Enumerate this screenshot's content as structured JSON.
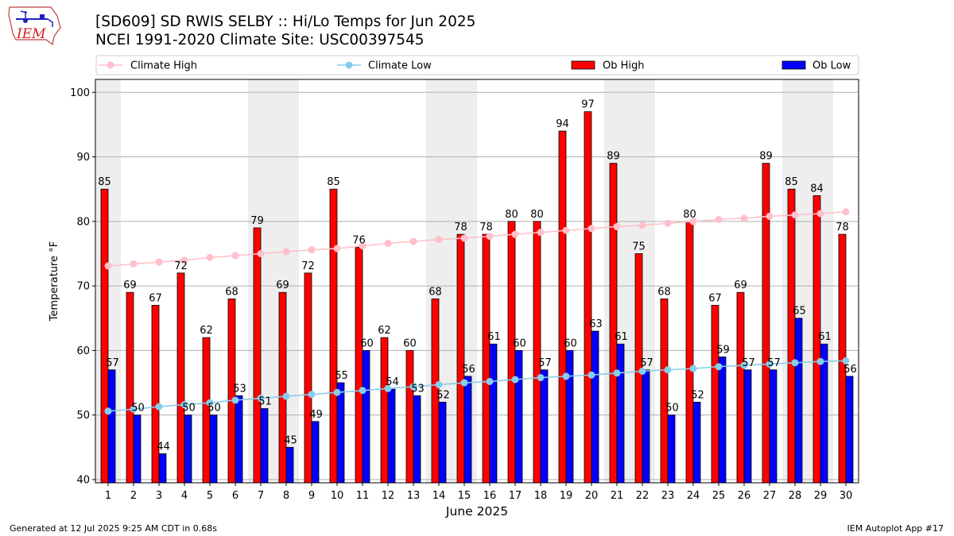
{
  "header": {
    "title_line1": "[SD609] SD RWIS SELBY :: Hi/Lo Temps for Jun 2025",
    "title_line2": "NCEI 1991-2020 Climate Site: USC00397545",
    "logo_text": "IEM"
  },
  "footer": {
    "generated": "Generated at 12 Jul 2025 9:25 AM CDT in 0.68s",
    "app": "IEM Autoplot App #17"
  },
  "colors": {
    "climate_high": "#ffc0cb",
    "climate_low": "#87ceeb",
    "ob_high": "#ff0000",
    "ob_low": "#0000ff",
    "weekend_shade": "#eeeeee",
    "grid": "#b0b0b0"
  },
  "chart_data": {
    "type": "bar",
    "xlabel": "June 2025",
    "ylabel": "Temperature °F",
    "ylim": [
      39.5,
      102
    ],
    "yticks": [
      40,
      50,
      60,
      70,
      80,
      90,
      100
    ],
    "grid": "horizontal",
    "legend": "top, above plot",
    "categories": [
      "1",
      "2",
      "3",
      "4",
      "5",
      "6",
      "7",
      "8",
      "9",
      "10",
      "11",
      "12",
      "13",
      "14",
      "15",
      "16",
      "17",
      "18",
      "19",
      "20",
      "21",
      "22",
      "23",
      "24",
      "25",
      "26",
      "27",
      "28",
      "29",
      "30"
    ],
    "shaded_days": [
      1,
      7,
      8,
      14,
      15,
      21,
      22,
      28,
      29
    ],
    "series": [
      {
        "name": "Climate High",
        "kind": "line",
        "values": [
          73.1,
          73.4,
          73.7,
          74.0,
          74.4,
          74.7,
          75.0,
          75.3,
          75.6,
          75.8,
          76.2,
          76.6,
          76.9,
          77.2,
          77.4,
          77.7,
          78.0,
          78.3,
          78.6,
          78.9,
          79.2,
          79.4,
          79.7,
          80.0,
          80.3,
          80.5,
          80.8,
          81.0,
          81.2,
          81.5
        ]
      },
      {
        "name": "Climate Low",
        "kind": "line",
        "values": [
          50.6,
          50.9,
          51.3,
          51.6,
          51.9,
          52.3,
          52.6,
          52.9,
          53.2,
          53.5,
          53.8,
          54.1,
          54.4,
          54.7,
          55.0,
          55.2,
          55.5,
          55.8,
          56.0,
          56.2,
          56.5,
          56.8,
          57.0,
          57.2,
          57.5,
          57.7,
          57.9,
          58.1,
          58.3,
          58.4
        ]
      },
      {
        "name": "Ob High",
        "kind": "bar",
        "values": [
          85,
          69,
          67,
          72,
          62,
          68,
          79,
          69,
          72,
          85,
          76,
          62,
          60,
          68,
          78,
          78,
          80,
          80,
          94,
          97,
          89,
          75,
          68,
          80,
          67,
          69,
          89,
          85,
          84,
          78
        ]
      },
      {
        "name": "Ob Low",
        "kind": "bar",
        "values": [
          57,
          50,
          44,
          50,
          50,
          53,
          51,
          45,
          49,
          55,
          60,
          54,
          53,
          52,
          56,
          61,
          60,
          57,
          60,
          63,
          61,
          57,
          50,
          52,
          59,
          57,
          57,
          65,
          61,
          56
        ]
      }
    ]
  }
}
